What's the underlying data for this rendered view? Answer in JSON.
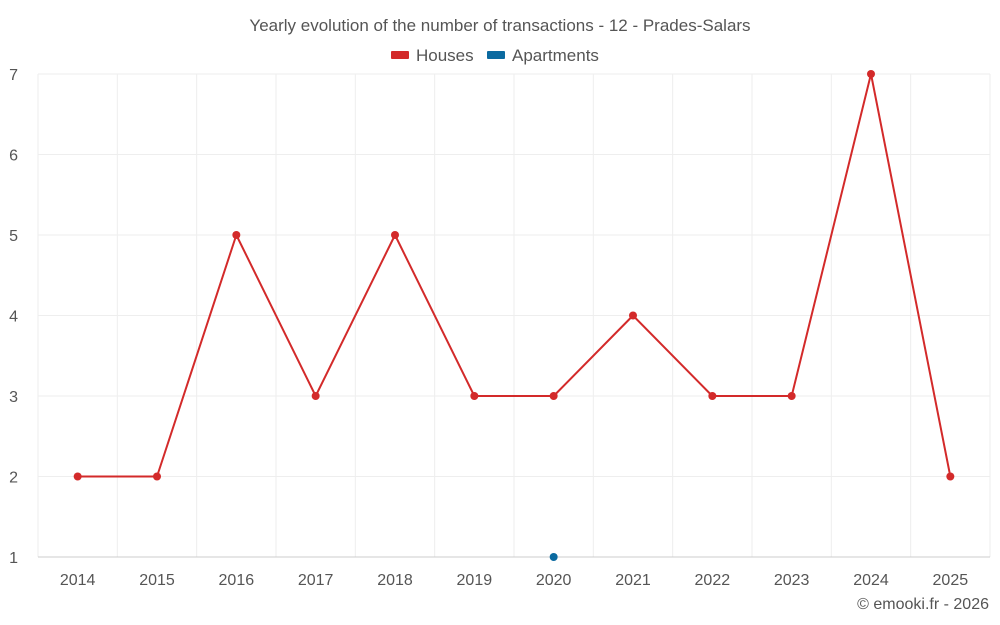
{
  "chart_data": {
    "type": "line",
    "title": "Yearly evolution of the number of transactions - 12 - Prades-Salars",
    "categories": [
      "2014",
      "2015",
      "2016",
      "2017",
      "2018",
      "2019",
      "2020",
      "2021",
      "2022",
      "2023",
      "2024",
      "2025"
    ],
    "series": [
      {
        "name": "Houses",
        "color": "#d32a2a",
        "values": [
          2,
          2,
          5,
          3,
          5,
          3,
          3,
          4,
          3,
          3,
          7,
          2
        ]
      },
      {
        "name": "Apartments",
        "color": "#0b6aa0",
        "values": [
          null,
          null,
          null,
          null,
          null,
          null,
          1,
          null,
          null,
          null,
          null,
          null
        ]
      }
    ],
    "yticks": [
      "1",
      "2",
      "3",
      "4",
      "5",
      "6",
      "7"
    ],
    "ylim": [
      1,
      7
    ],
    "xlabel": "",
    "ylabel": "",
    "grid": true,
    "legend_position": "top-center"
  },
  "footer": {
    "copyright": "© emooki.fr - 2026"
  }
}
